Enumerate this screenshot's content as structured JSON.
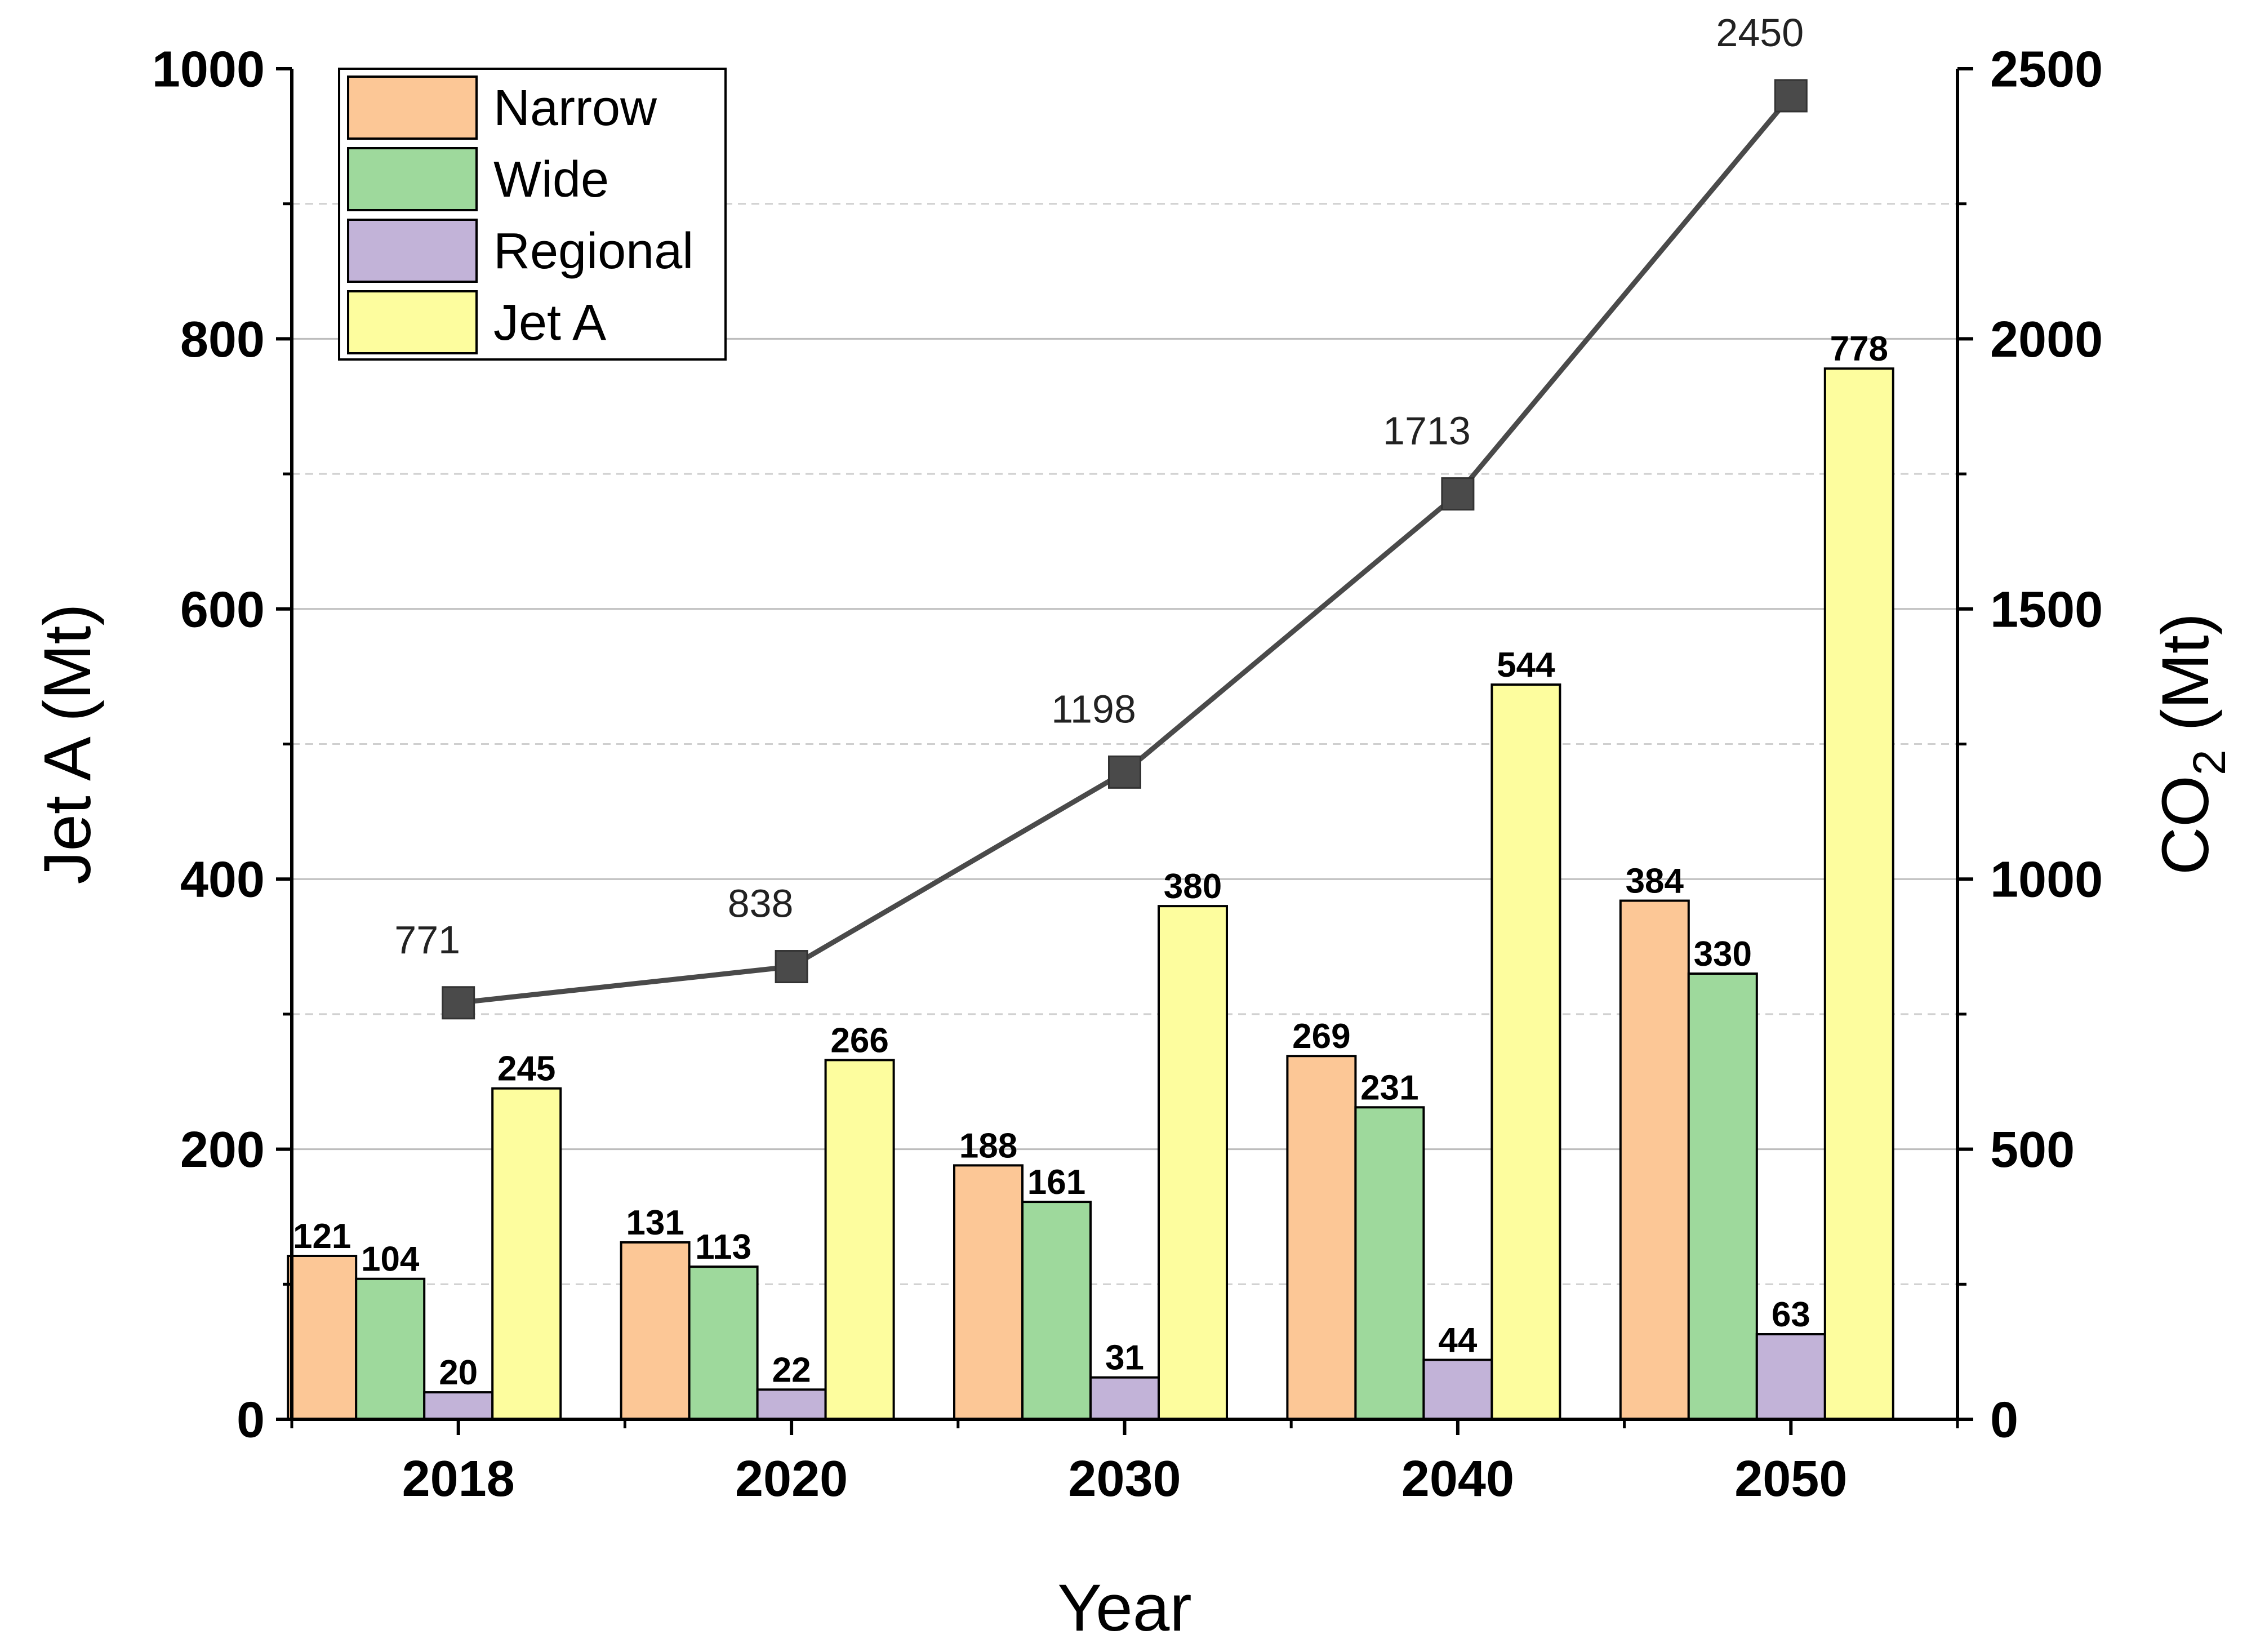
{
  "chart_data": {
    "type": "bar",
    "title": "",
    "xlabel": "Year",
    "ylabel": "Jet A (Mt)",
    "y2label_main": "CO",
    "y2label_sub": "2",
    "y2label_unit": " (Mt)",
    "categories": [
      "2018",
      "2020",
      "2030",
      "2040",
      "2050"
    ],
    "ylim": [
      0,
      1000
    ],
    "yticks": [
      0,
      200,
      400,
      600,
      800,
      1000
    ],
    "y2lim": [
      0,
      2500
    ],
    "y2ticks": [
      0,
      500,
      1000,
      1500,
      2000,
      2500
    ],
    "grid": true,
    "legend_position": "top-left",
    "series": [
      {
        "name": "Narrow",
        "color": "#fcc796",
        "values": [
          121,
          131,
          188,
          269,
          384
        ]
      },
      {
        "name": "Wide",
        "color": "#9ed99c",
        "values": [
          104,
          113,
          161,
          231,
          330
        ]
      },
      {
        "name": "Regional",
        "color": "#c2b3d8",
        "values": [
          20,
          22,
          31,
          44,
          63
        ]
      },
      {
        "name": "Jet A",
        "color": "#fdfd9e",
        "values": [
          245,
          266,
          380,
          544,
          778
        ]
      }
    ],
    "line_series": {
      "name": "CO2",
      "axis": "right",
      "color": "#4a4a4a",
      "values": [
        771,
        838,
        1198,
        1713,
        2450
      ]
    }
  }
}
